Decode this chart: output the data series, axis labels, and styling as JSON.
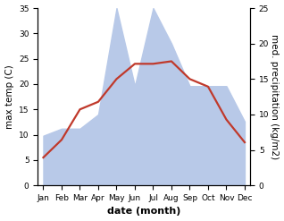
{
  "months": [
    "Jan",
    "Feb",
    "Mar",
    "Apr",
    "May",
    "Jun",
    "Jul",
    "Aug",
    "Sep",
    "Oct",
    "Nov",
    "Dec"
  ],
  "month_positions": [
    0,
    1,
    2,
    3,
    4,
    5,
    6,
    7,
    8,
    9,
    10,
    11
  ],
  "temperature": [
    5.5,
    9.0,
    15.0,
    16.5,
    21.0,
    24.0,
    24.0,
    24.5,
    21.0,
    19.5,
    13.0,
    8.5
  ],
  "precipitation": [
    7,
    8,
    8,
    10,
    25,
    14,
    25,
    20,
    14,
    14,
    14,
    9
  ],
  "temp_color": "#c0392b",
  "precip_color": "#b8c9e8",
  "background_color": "#ffffff",
  "xlabel": "date (month)",
  "ylabel_left": "max temp (C)",
  "ylabel_right": "med. precipitation (kg/m2)",
  "ylim_left": [
    0,
    35
  ],
  "ylim_right": [
    0,
    25
  ],
  "yticks_left": [
    0,
    5,
    10,
    15,
    20,
    25,
    30,
    35
  ],
  "yticks_right": [
    0,
    5,
    10,
    15,
    20,
    25
  ],
  "figsize": [
    3.18,
    2.47
  ],
  "dpi": 100,
  "temp_linewidth": 1.6,
  "xlabel_fontsize": 8,
  "xlabel_fontweight": "bold",
  "ylabel_fontsize": 7.5,
  "tick_fontsize": 6.5
}
